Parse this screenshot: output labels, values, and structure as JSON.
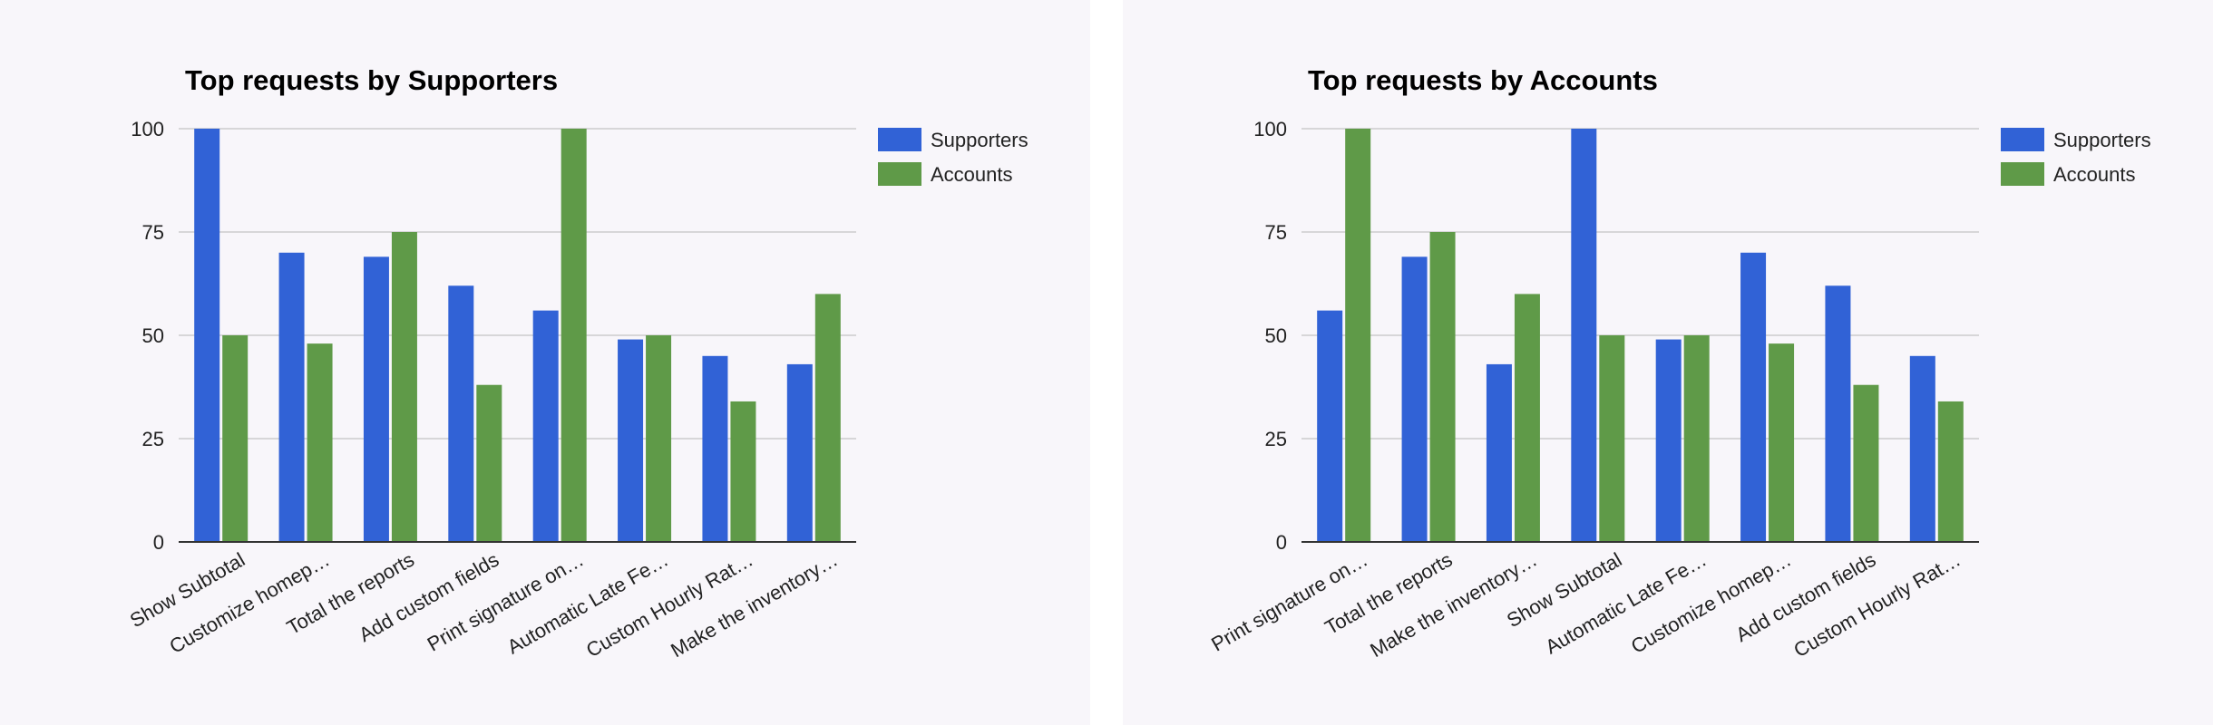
{
  "colors": {
    "supporters": "#3162d6",
    "accounts": "#5f9a48",
    "background": "#f8f6fa"
  },
  "chart_data": [
    {
      "type": "bar",
      "title": "Top requests by Supporters",
      "categories": [
        "Show Subtotal",
        "Customize homep…",
        "Total the reports",
        "Add custom fields",
        "Print signature on…",
        "Automatic Late Fe…",
        "Custom Hourly Rat…",
        "Make the inventory…"
      ],
      "series": [
        {
          "name": "Supporters",
          "values": [
            100,
            70,
            69,
            62,
            56,
            49,
            45,
            43
          ]
        },
        {
          "name": "Accounts",
          "values": [
            50,
            48,
            75,
            38,
            100,
            50,
            34,
            60
          ]
        }
      ],
      "yticks": [
        "0",
        "25",
        "50",
        "75",
        "100"
      ],
      "ylim": [
        0,
        100
      ],
      "grid": true,
      "legend": "right"
    },
    {
      "type": "bar",
      "title": "Top requests by Accounts",
      "categories": [
        "Print signature on…",
        "Total the reports",
        "Make the inventory…",
        "Show Subtotal",
        "Automatic Late Fe…",
        "Customize homep…",
        "Add custom fields",
        "Custom Hourly Rat…"
      ],
      "series": [
        {
          "name": "Supporters",
          "values": [
            56,
            69,
            43,
            100,
            49,
            70,
            62,
            45
          ]
        },
        {
          "name": "Accounts",
          "values": [
            100,
            75,
            60,
            50,
            50,
            48,
            38,
            34
          ]
        }
      ],
      "yticks": [
        "0",
        "25",
        "50",
        "75",
        "100"
      ],
      "ylim": [
        0,
        100
      ],
      "grid": true,
      "legend": "right"
    }
  ]
}
